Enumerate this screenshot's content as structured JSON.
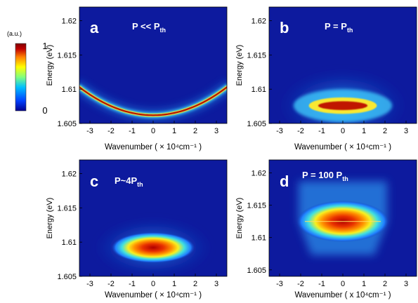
{
  "colorbar": {
    "unit": "(a.u.)",
    "max_label": "1",
    "min_label": "0",
    "colors": [
      "#00008f",
      "#0040ff",
      "#00c0ff",
      "#80ff80",
      "#ffff00",
      "#ff8000",
      "#c00000",
      "#800000"
    ]
  },
  "chart_data": [
    {
      "id": "a",
      "type": "heatmap",
      "panel_letter": "a",
      "title": {
        "main": "P << P",
        "sub": "th"
      },
      "xlabel": "Wavenumber ( × 10⁴cm⁻¹ )",
      "ylabel": "Energy (eV)",
      "xlim": [
        -3.5,
        3.5
      ],
      "ylim": [
        1.605,
        1.622
      ],
      "xticks": [
        "-3",
        "-2",
        "-1",
        "0",
        "1",
        "2",
        "3"
      ],
      "yticks": [
        "1.605",
        "1.61",
        "1.615",
        "1.62"
      ],
      "features": [
        {
          "shape": "parabola",
          "vertex_x": 0,
          "vertex_energy": 1.6062,
          "edge_x": 3.5,
          "edge_energy": 1.6103,
          "intensity": "peak along dispersion curve"
        }
      ]
    },
    {
      "id": "b",
      "type": "heatmap",
      "panel_letter": "b",
      "title": {
        "main": "P = P",
        "sub": "th"
      },
      "xlabel": "Wavenumber ( × 10⁴cm⁻¹ )",
      "ylabel": "Energy (eV)",
      "xlim": [
        -3.5,
        3.5
      ],
      "ylim": [
        1.605,
        1.622
      ],
      "xticks": [
        "-3",
        "-2",
        "-1",
        "0",
        "1",
        "2",
        "3"
      ],
      "yticks": [
        "1.605",
        "1.61",
        "1.615",
        "1.62"
      ],
      "features": [
        {
          "shape": "condensate",
          "center_x": 0,
          "center_energy": 1.6076,
          "halfwidth_x": 2.6,
          "halfwidth_energy": 0.0016,
          "intensity": "flat bright band near k=0"
        }
      ]
    },
    {
      "id": "c",
      "type": "heatmap",
      "panel_letter": "c",
      "title": {
        "main": "P~4P",
        "sub": "th"
      },
      "xlabel": "Wavenumber ( × 10⁴cm⁻¹ )",
      "ylabel": "Energy (eV)",
      "xlim": [
        -3.5,
        3.5
      ],
      "ylim": [
        1.605,
        1.622
      ],
      "xticks": [
        "-3",
        "-2",
        "-1",
        "0",
        "1",
        "2",
        "3"
      ],
      "yticks": [
        "1.605",
        "1.61",
        "1.615",
        "1.62"
      ],
      "features": [
        {
          "shape": "condensate",
          "center_x": 0,
          "center_energy": 1.6092,
          "halfwidth_x": 2.2,
          "halfwidth_energy": 0.0016,
          "intensity": "bright blob centered at k=0"
        }
      ]
    },
    {
      "id": "d",
      "type": "heatmap",
      "panel_letter": "d",
      "title": {
        "main": "P = 100 P",
        "sub": "th"
      },
      "xlabel": "Wavenumber ( x 10⁴cm⁻¹ )",
      "ylabel": "Energy (eV)",
      "xlim": [
        -3.5,
        3.5
      ],
      "ylim": [
        1.604,
        1.622
      ],
      "xticks": [
        "-3",
        "-2",
        "-1",
        "0",
        "1",
        "2",
        "3"
      ],
      "yticks": [
        "1.605",
        "1.61",
        "1.615",
        "1.62"
      ],
      "features": [
        {
          "shape": "condensate",
          "center_x": 0,
          "center_energy": 1.6125,
          "halfwidth_x": 2.3,
          "halfwidth_energy": 0.002,
          "intensity": "broad bright region around k=0"
        }
      ]
    }
  ]
}
